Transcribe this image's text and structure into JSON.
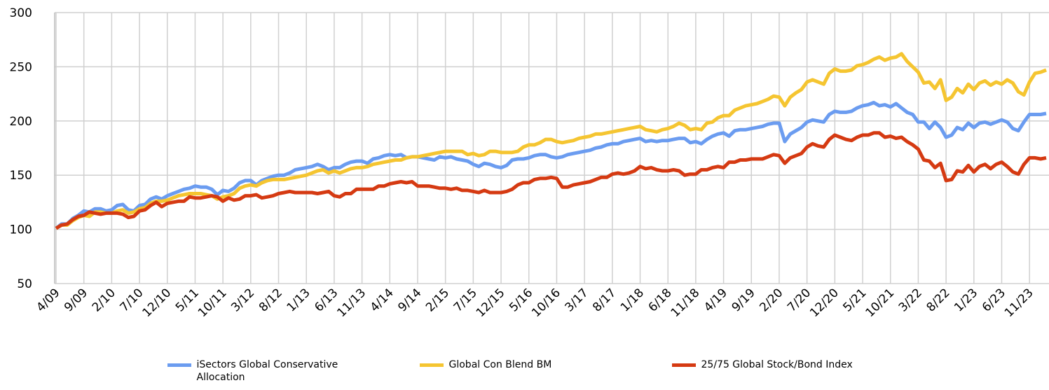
{
  "chart_data": {
    "type": "line",
    "categories": [
      "4/09",
      null,
      null,
      null,
      null,
      "9/09",
      null,
      null,
      null,
      null,
      "2/10",
      null,
      null,
      null,
      null,
      "7/10",
      null,
      null,
      null,
      null,
      "12/10",
      null,
      null,
      null,
      null,
      "5/11",
      null,
      null,
      null,
      null,
      "10/11",
      null,
      null,
      null,
      null,
      "3/12",
      null,
      null,
      null,
      null,
      "8/12",
      null,
      null,
      null,
      null,
      "1/13",
      null,
      null,
      null,
      null,
      "6/13",
      null,
      null,
      null,
      null,
      "11/13",
      null,
      null,
      null,
      null,
      "4/14",
      null,
      null,
      null,
      null,
      "9/14",
      null,
      null,
      null,
      null,
      "2/15",
      null,
      null,
      null,
      null,
      "7/15",
      null,
      null,
      null,
      null,
      "12/15",
      null,
      null,
      null,
      null,
      "5/16",
      null,
      null,
      null,
      null,
      "10/16",
      null,
      null,
      null,
      null,
      "3/17",
      null,
      null,
      null,
      null,
      "8/17",
      null,
      null,
      null,
      null,
      "1/18",
      null,
      null,
      null,
      null,
      "6/18",
      null,
      null,
      null,
      null,
      "11/18",
      null,
      null,
      null,
      null,
      "4/19",
      null,
      null,
      null,
      null,
      "9/19",
      null,
      null,
      null,
      null,
      "2/20",
      null,
      null,
      null,
      null,
      "7/20",
      null,
      null,
      null,
      null,
      "12/20",
      null,
      null,
      null,
      null,
      "5/21",
      null,
      null,
      null,
      null,
      "10/21",
      null,
      null,
      null,
      null,
      "3/22",
      null,
      null,
      null,
      null,
      "8/22",
      null,
      null,
      null,
      null,
      "1/23",
      null,
      null,
      null,
      null,
      "6/23",
      null,
      null,
      null,
      null,
      "11/23",
      null,
      null,
      null
    ],
    "series": [
      {
        "name": "iSectors Global Conservative Allocation",
        "color": "#6b9cf0",
        "values": [
          101,
          105,
          105,
          110,
          113,
          117,
          116,
          119,
          119,
          117,
          118,
          122,
          123,
          118,
          117,
          122,
          123,
          128,
          130,
          128,
          131,
          133,
          135,
          137,
          138,
          140,
          139,
          139,
          137,
          132,
          136,
          135,
          138,
          143,
          145,
          145,
          141,
          145,
          147,
          149,
          150,
          150,
          152,
          155,
          156,
          157,
          158,
          160,
          158,
          155,
          157,
          157,
          160,
          162,
          163,
          163,
          161,
          165,
          166,
          168,
          169,
          168,
          169,
          166,
          167,
          167,
          166,
          165,
          164,
          167,
          166,
          167,
          165,
          164,
          163,
          160,
          158,
          161,
          160,
          158,
          157,
          159,
          164,
          165,
          165,
          166,
          168,
          169,
          169,
          167,
          166,
          167,
          169,
          170,
          171,
          172,
          173,
          175,
          176,
          178,
          179,
          179,
          181,
          182,
          183,
          184,
          181,
          182,
          181,
          182,
          182,
          183,
          184,
          184,
          180,
          181,
          179,
          183,
          186,
          188,
          189,
          186,
          191,
          192,
          192,
          193,
          194,
          195,
          197,
          198,
          198,
          181,
          188,
          191,
          194,
          199,
          201,
          200,
          199,
          206,
          209,
          208,
          208,
          209,
          212,
          214,
          215,
          217,
          214,
          215,
          213,
          216,
          212,
          208,
          206,
          199,
          199,
          193,
          199,
          194,
          185,
          187,
          194,
          192,
          198,
          194,
          198,
          199,
          197,
          199,
          201,
          199,
          193,
          191,
          199,
          206,
          206,
          206,
          207
        ]
      },
      {
        "name": "Global Con Blend BM",
        "color": "#f5c531",
        "values": [
          101,
          104,
          104,
          108,
          111,
          113,
          112,
          116,
          116,
          115,
          115,
          117,
          118,
          115,
          116,
          119,
          120,
          124,
          126,
          126,
          127,
          129,
          131,
          132,
          133,
          133,
          133,
          132,
          131,
          128,
          130,
          131,
          133,
          138,
          140,
          141,
          140,
          143,
          145,
          146,
          146,
          146,
          147,
          148,
          149,
          150,
          152,
          154,
          155,
          152,
          154,
          152,
          154,
          156,
          157,
          157,
          158,
          160,
          161,
          162,
          163,
          164,
          164,
          166,
          167,
          167,
          168,
          169,
          170,
          171,
          172,
          172,
          172,
          172,
          169,
          170,
          168,
          169,
          172,
          172,
          171,
          171,
          171,
          172,
          176,
          178,
          178,
          180,
          183,
          183,
          181,
          180,
          181,
          182,
          184,
          185,
          186,
          188,
          188,
          189,
          190,
          191,
          192,
          193,
          194,
          195,
          192,
          191,
          190,
          192,
          193,
          195,
          198,
          196,
          192,
          193,
          192,
          198,
          199,
          203,
          205,
          205,
          210,
          212,
          214,
          215,
          216,
          218,
          220,
          223,
          222,
          214,
          222,
          226,
          229,
          236,
          238,
          236,
          234,
          244,
          248,
          246,
          246,
          247,
          251,
          252,
          254,
          257,
          259,
          256,
          258,
          259,
          262,
          255,
          250,
          245,
          235,
          236,
          230,
          238,
          219,
          222,
          230,
          226,
          234,
          229,
          235,
          237,
          233,
          236,
          234,
          238,
          235,
          227,
          224,
          236,
          244,
          245,
          247
        ]
      },
      {
        "name": "25/75 Global Stock/Bond Index",
        "color": "#d53a12",
        "values": [
          101,
          104,
          105,
          109,
          112,
          113,
          116,
          115,
          114,
          115,
          115,
          115,
          114,
          111,
          112,
          117,
          118,
          122,
          125,
          121,
          124,
          125,
          126,
          126,
          130,
          129,
          129,
          130,
          131,
          130,
          126,
          129,
          127,
          128,
          131,
          131,
          132,
          129,
          130,
          131,
          133,
          134,
          135,
          134,
          134,
          134,
          134,
          133,
          134,
          135,
          131,
          130,
          133,
          133,
          137,
          137,
          137,
          137,
          140,
          140,
          142,
          143,
          144,
          143,
          144,
          140,
          140,
          140,
          139,
          138,
          138,
          137,
          138,
          136,
          136,
          135,
          134,
          136,
          134,
          134,
          134,
          135,
          137,
          141,
          143,
          143,
          146,
          147,
          147,
          148,
          147,
          139,
          139,
          141,
          142,
          143,
          144,
          146,
          148,
          148,
          151,
          152,
          151,
          152,
          154,
          158,
          156,
          157,
          155,
          154,
          154,
          155,
          154,
          150,
          151,
          151,
          155,
          155,
          157,
          158,
          157,
          162,
          162,
          164,
          164,
          165,
          165,
          165,
          167,
          169,
          168,
          161,
          166,
          168,
          170,
          176,
          179,
          177,
          176,
          183,
          187,
          185,
          183,
          182,
          185,
          187,
          187,
          189,
          189,
          185,
          186,
          184,
          185,
          181,
          178,
          174,
          164,
          163,
          157,
          161,
          145,
          146,
          154,
          153,
          159,
          153,
          158,
          160,
          156,
          160,
          162,
          158,
          153,
          151,
          160,
          166,
          166,
          165,
          166
        ]
      }
    ],
    "ylim": [
      50,
      300
    ],
    "yticks": [
      50,
      100,
      150,
      200,
      250,
      300
    ],
    "grid": true
  }
}
